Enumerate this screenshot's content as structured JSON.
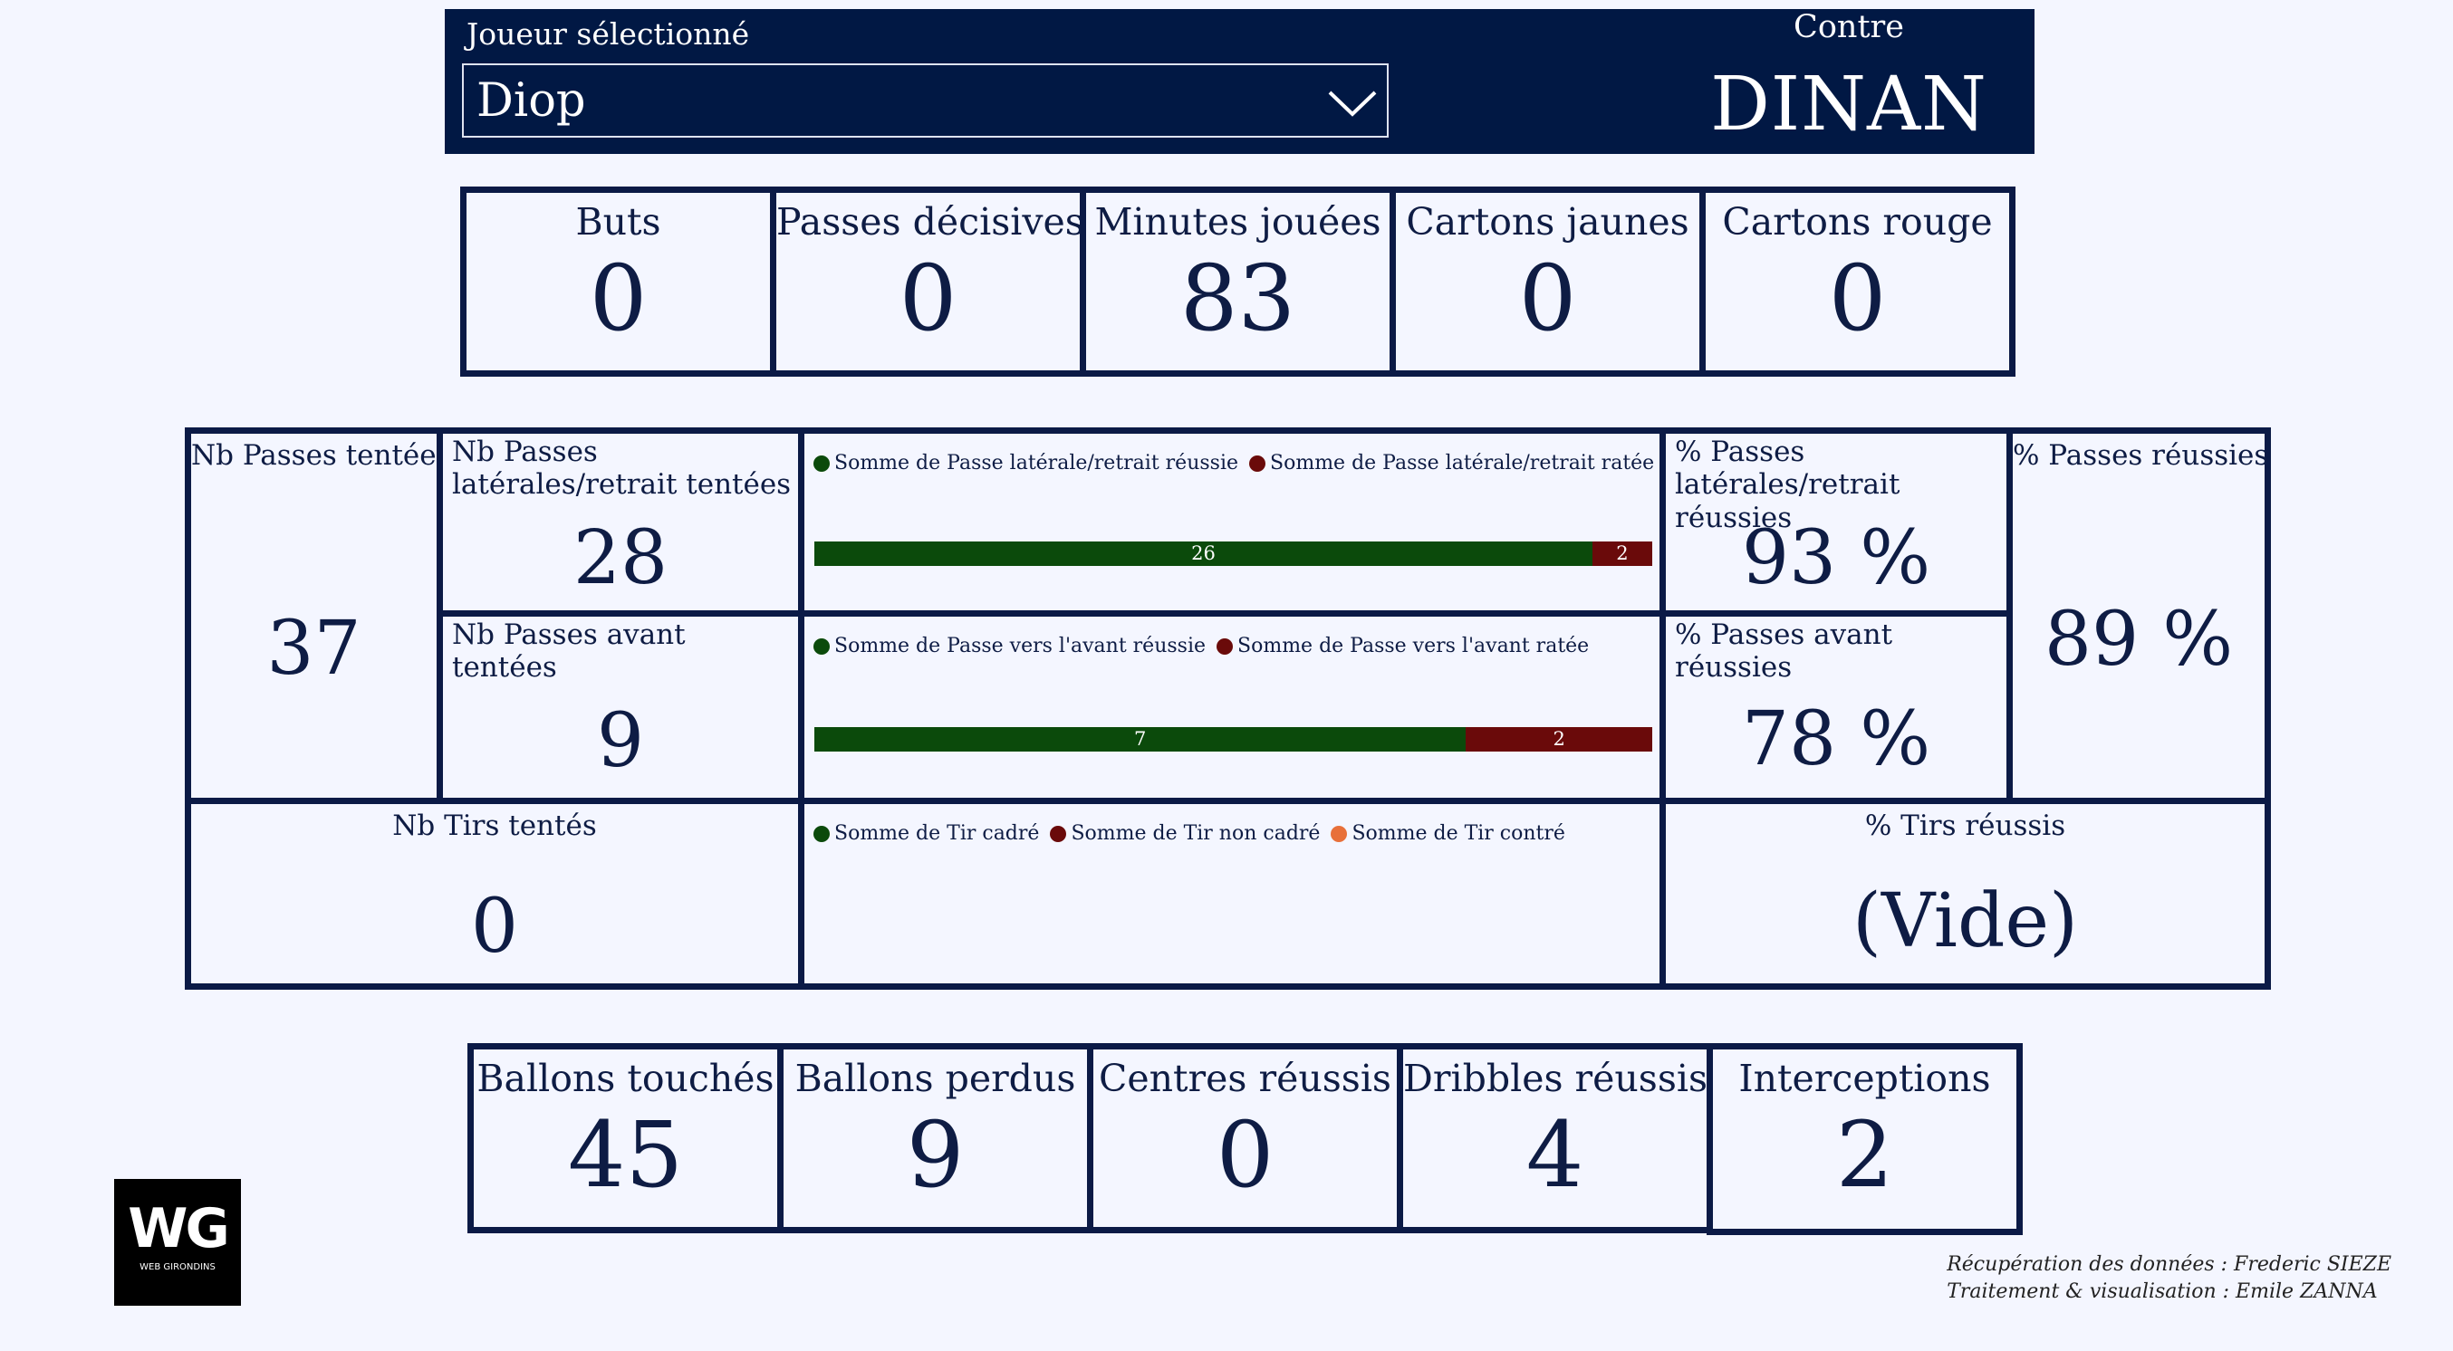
{
  "header": {
    "player_label": "Joueur sélectionné",
    "player_value": "Diop",
    "opponent_label": "Contre",
    "opponent_value": "DINAN"
  },
  "top_stats": [
    {
      "label": "Buts",
      "value": "0"
    },
    {
      "label": "Passes décisives",
      "value": "0"
    },
    {
      "label": "Minutes jouées",
      "value": "83"
    },
    {
      "label": "Cartons jaunes",
      "value": "0"
    },
    {
      "label": "Cartons rouge",
      "value": "0"
    }
  ],
  "passes": {
    "total_label": "Nb Passes tentées",
    "total_value": "37",
    "lateral_label": "Nb Passes latérales/retrait tentées",
    "lateral_value": "28",
    "forward_label": "Nb Passes avant tentées",
    "forward_value": "9",
    "lateral_pct_label": "% Passes latérales/retrait réussies",
    "lateral_pct_value": "93 %",
    "forward_pct_label": "% Passes avant réussies",
    "forward_pct_value": "78 %",
    "success_pct_label": "% Passes réussies",
    "success_pct_value": "89 %"
  },
  "shots": {
    "total_label": "Nb Tirs tentés",
    "total_value": "0",
    "pct_label": "% Tirs réussis",
    "pct_value": "(Vide)"
  },
  "chart_data": [
    {
      "type": "bar",
      "orientation": "horizontal-stacked",
      "series": [
        {
          "name": "Somme de Passe latérale/retrait réussie",
          "values": [
            26
          ],
          "color": "#0b4a0b"
        },
        {
          "name": "Somme de Passe latérale/retrait ratée",
          "values": [
            2
          ],
          "color": "#6a0a0a"
        }
      ],
      "legend": "top-left"
    },
    {
      "type": "bar",
      "orientation": "horizontal-stacked",
      "series": [
        {
          "name": "Somme de Passe vers l'avant réussie",
          "values": [
            7
          ],
          "color": "#0b4a0b"
        },
        {
          "name": "Somme de Passe vers l'avant ratée",
          "values": [
            2
          ],
          "color": "#6a0a0a"
        }
      ],
      "legend": "top-left"
    },
    {
      "type": "bar",
      "orientation": "horizontal-stacked",
      "series": [
        {
          "name": "Somme de Tir cadré",
          "values": [],
          "color": "#0b4a0b"
        },
        {
          "name": "Somme de Tir non cadré",
          "values": [],
          "color": "#6a0a0a"
        },
        {
          "name": "Somme de Tir contré",
          "values": [],
          "color": "#e8703a"
        }
      ],
      "legend": "top-left"
    }
  ],
  "bottom_stats": [
    {
      "label": "Ballons touchés",
      "value": "45"
    },
    {
      "label": "Ballons perdus",
      "value": "9"
    },
    {
      "label": "Centres réussis",
      "value": "0"
    },
    {
      "label": "Dribbles réussis",
      "value": "4"
    },
    {
      "label": "Interceptions",
      "value": "2"
    }
  ],
  "credits": {
    "line1": "Récupération des données : Frederic SIEZE",
    "line2": "Traitement & visualisation : Emile ZANNA"
  },
  "logo": {
    "mark": "WG",
    "sub": "WEB GIRONDINS"
  }
}
